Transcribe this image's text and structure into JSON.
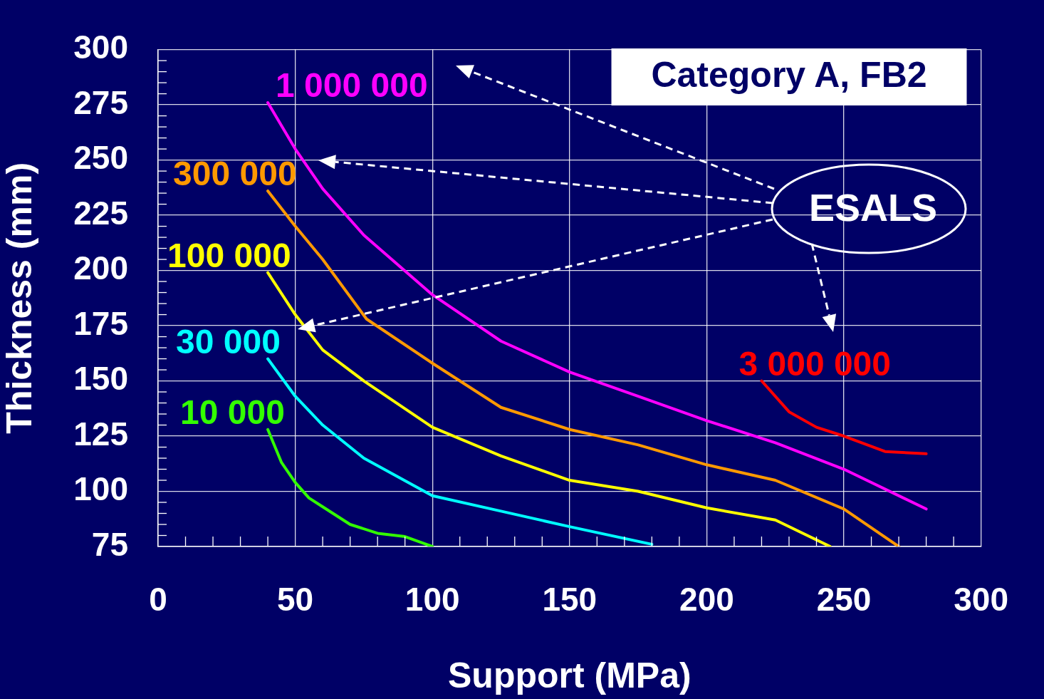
{
  "chart_data": {
    "type": "line",
    "xlabel": "Support (MPa)",
    "ylabel": "Thickness (mm)",
    "xlim": [
      0,
      300
    ],
    "ylim": [
      75,
      300
    ],
    "xticks": [
      0,
      {
        "value": 10,
        "label": null
      },
      {
        "value": 20,
        "label": null
      },
      {
        "value": 30,
        "label": null
      },
      {
        "value": 40,
        "label": null
      },
      50,
      {
        "value": 60,
        "label": null
      },
      {
        "value": 70,
        "label": null
      },
      {
        "value": 80,
        "label": null
      },
      {
        "value": 90,
        "label": null
      },
      100,
      {
        "value": 110,
        "label": null
      },
      {
        "value": 120,
        "label": null
      },
      {
        "value": 130,
        "label": null
      },
      {
        "value": 140,
        "label": null
      },
      150,
      {
        "value": 160,
        "label": null
      },
      {
        "value": 170,
        "label": null
      },
      {
        "value": 180,
        "label": null
      },
      {
        "value": 190,
        "label": null
      },
      200,
      {
        "value": 210,
        "label": null
      },
      {
        "value": 220,
        "label": null
      },
      {
        "value": 230,
        "label": null
      },
      {
        "value": 240,
        "label": null
      },
      250,
      {
        "value": 260,
        "label": null
      },
      {
        "value": 270,
        "label": null
      },
      {
        "value": 280,
        "label": null
      },
      {
        "value": 290,
        "label": null
      },
      300
    ],
    "yticks": [
      75,
      {
        "value": 80,
        "label": null
      },
      {
        "value": 85,
        "label": null
      },
      {
        "value": 90,
        "label": null
      },
      {
        "value": 95,
        "label": null
      },
      100,
      {
        "value": 105,
        "label": null
      },
      {
        "value": 110,
        "label": null
      },
      {
        "value": 115,
        "label": null
      },
      {
        "value": 120,
        "label": null
      },
      125,
      {
        "value": 130,
        "label": null
      },
      {
        "value": 135,
        "label": null
      },
      {
        "value": 140,
        "label": null
      },
      {
        "value": 145,
        "label": null
      },
      150,
      {
        "value": 155,
        "label": null
      },
      {
        "value": 160,
        "label": null
      },
      {
        "value": 165,
        "label": null
      },
      {
        "value": 170,
        "label": null
      },
      175,
      {
        "value": 180,
        "label": null
      },
      {
        "value": 185,
        "label": null
      },
      {
        "value": 190,
        "label": null
      },
      {
        "value": 195,
        "label": null
      },
      200,
      {
        "value": 205,
        "label": null
      },
      {
        "value": 210,
        "label": null
      },
      {
        "value": 215,
        "label": null
      },
      {
        "value": 220,
        "label": null
      },
      225,
      {
        "value": 230,
        "label": null
      },
      {
        "value": 235,
        "label": null
      },
      {
        "value": 240,
        "label": null
      },
      {
        "value": 245,
        "label": null
      },
      250,
      {
        "value": 255,
        "label": null
      },
      {
        "value": 260,
        "label": null
      },
      {
        "value": 265,
        "label": null
      },
      {
        "value": 270,
        "label": null
      },
      275,
      {
        "value": 280,
        "label": null
      },
      {
        "value": 285,
        "label": null
      },
      {
        "value": 290,
        "label": null
      },
      {
        "value": 295,
        "label": null
      },
      300
    ],
    "grid": true,
    "legend": false,
    "marker": "none",
    "line_style": "solid",
    "series": [
      {
        "name": "10 000",
        "color": "#33ff00",
        "x": [
          40,
          45,
          50,
          55,
          60,
          70,
          80,
          90,
          100
        ],
        "values": [
          128,
          113,
          104,
          97,
          93,
          85,
          81,
          79.5,
          75
        ]
      },
      {
        "name": "30 000",
        "color": "#00ffff",
        "x": [
          40,
          50,
          60,
          75,
          100,
          125,
          150,
          180
        ],
        "values": [
          160,
          143,
          130,
          115,
          98,
          91,
          84,
          76
        ]
      },
      {
        "name": "100 000",
        "color": "#ffff00",
        "x": [
          40,
          50,
          60,
          75,
          100,
          125,
          150,
          175,
          200,
          225,
          245
        ],
        "values": [
          199,
          180,
          164,
          150,
          129,
          116,
          105,
          100,
          92.5,
          87,
          75
        ]
      },
      {
        "name": "300 000",
        "color": "#ff9900",
        "x": [
          40,
          50,
          60,
          76,
          100,
          125,
          150,
          175,
          200,
          225,
          250,
          270
        ],
        "values": [
          236,
          220,
          205,
          178,
          158,
          138,
          128,
          121,
          112,
          105,
          92,
          75
        ]
      },
      {
        "name": "1 000 000",
        "color": "#ff00ff",
        "x": [
          40,
          50,
          60,
          75,
          100,
          125,
          150,
          175,
          200,
          225,
          250,
          280
        ],
        "values": [
          276,
          255,
          237,
          216,
          189,
          168,
          154,
          143,
          132,
          122,
          110,
          92
        ]
      },
      {
        "name": "3 000 000",
        "color": "#ff0000",
        "x": [
          220,
          230,
          240,
          250,
          265,
          280
        ],
        "values": [
          150,
          136,
          129,
          125,
          118,
          117
        ]
      }
    ],
    "annotations": [
      "Category A, FB2",
      "ESALS"
    ]
  }
}
